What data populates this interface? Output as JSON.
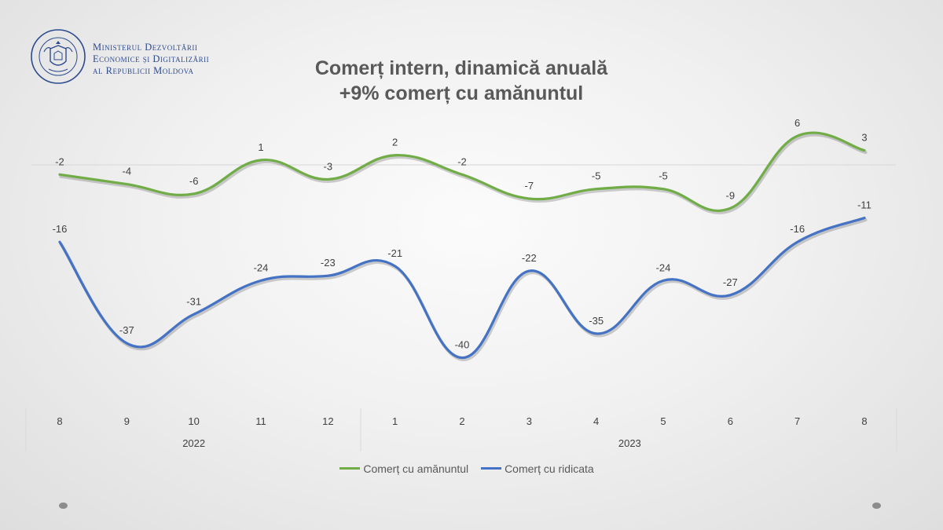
{
  "header": {
    "ministry_lines": [
      "Ministerul Dezvoltării",
      "Economice și Digitalizării",
      "al Republicii Moldova"
    ],
    "emblem_text": "GUVERNUL REPUBLICII MOLDOVA"
  },
  "chart_data": {
    "type": "line",
    "title": "Comerț intern, dinamică anuală",
    "subtitle": "+9% comerț cu amănuntul",
    "categories": [
      "8",
      "9",
      "10",
      "11",
      "12",
      "1",
      "2",
      "3",
      "4",
      "5",
      "6",
      "7",
      "8"
    ],
    "groups": [
      {
        "label": "2022",
        "categories": [
          "8",
          "9",
          "10",
          "11",
          "12"
        ]
      },
      {
        "label": "2023",
        "categories": [
          "1",
          "2",
          "3",
          "4",
          "5",
          "6",
          "7",
          "8"
        ]
      }
    ],
    "series": [
      {
        "name": "Comerț cu amănuntul",
        "color": "#70ad47",
        "values": [
          -2,
          -4,
          -6,
          1,
          -3,
          2,
          -2,
          -7,
          -5,
          -5,
          -9,
          6,
          3
        ]
      },
      {
        "name": "Comerț cu ridicata",
        "color": "#4472c4",
        "values": [
          -16,
          -37,
          -31,
          -24,
          -23,
          -21,
          -40,
          -22,
          -35,
          -24,
          -27,
          -16,
          -11
        ]
      }
    ],
    "smooth": true,
    "data_labels": true,
    "grid": false,
    "legend": "bottom",
    "ylim": [
      -45,
      9
    ]
  }
}
